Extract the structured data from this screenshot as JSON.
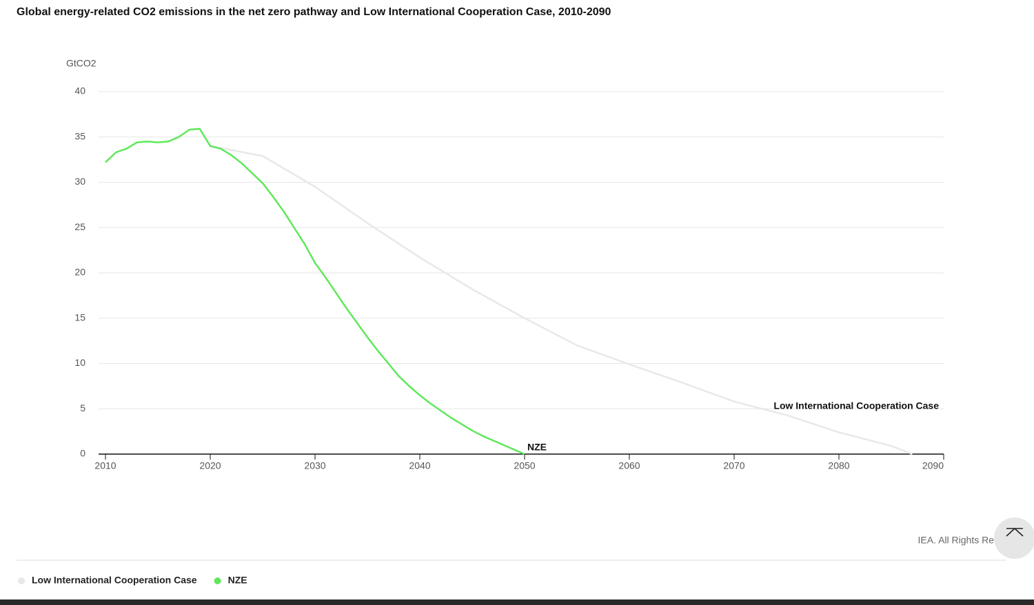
{
  "chart_data": {
    "type": "line",
    "title": "Global energy-related CO2 emissions in the net zero pathway and Low International Cooperation Case, 2010-2090",
    "y_axis_label": "GtCO2",
    "xlim": [
      2010,
      2090
    ],
    "xticks": [
      2010,
      2020,
      2030,
      2040,
      2050,
      2060,
      2070,
      2080,
      2090
    ],
    "ylim": [
      0,
      40
    ],
    "yticks": [
      0,
      5,
      10,
      15,
      20,
      25,
      30,
      35,
      40
    ],
    "grid": true,
    "series": [
      {
        "name": "Low International Cooperation Case",
        "color": "#e8e8e8",
        "x": [
          2020,
          2025,
          2030,
          2035,
          2040,
          2045,
          2050,
          2055,
          2060,
          2065,
          2070,
          2075,
          2080,
          2085,
          2087
        ],
        "values": [
          34.0,
          32.9,
          29.5,
          25.5,
          21.7,
          18.2,
          15.0,
          12.0,
          9.9,
          7.9,
          5.8,
          4.3,
          2.4,
          0.9,
          0
        ],
        "annotation": "Low International Cooperation Case"
      },
      {
        "name": "NZE",
        "color": "#5ee85a",
        "x": [
          2010,
          2011,
          2012,
          2013,
          2014,
          2015,
          2016,
          2017,
          2018,
          2019,
          2020,
          2021,
          2022,
          2023,
          2024,
          2025,
          2026,
          2027,
          2028,
          2029,
          2030,
          2031,
          2032,
          2033,
          2034,
          2035,
          2036,
          2037,
          2038,
          2039,
          2040,
          2041,
          2042,
          2043,
          2044,
          2045,
          2046,
          2047,
          2048,
          2049,
          2050
        ],
        "values": [
          32.2,
          33.3,
          33.7,
          34.4,
          34.5,
          34.4,
          34.5,
          35.0,
          35.8,
          35.9,
          34.0,
          33.7,
          33.0,
          32.1,
          31.0,
          29.9,
          28.4,
          26.8,
          25.0,
          23.2,
          21.1,
          19.5,
          17.8,
          16.1,
          14.5,
          12.9,
          11.4,
          10.0,
          8.6,
          7.5,
          6.5,
          5.6,
          4.8,
          4.0,
          3.3,
          2.6,
          2.0,
          1.5,
          1.0,
          0.5,
          0
        ],
        "annotation": "NZE"
      }
    ],
    "source": "IEA. All Rights Re"
  }
}
